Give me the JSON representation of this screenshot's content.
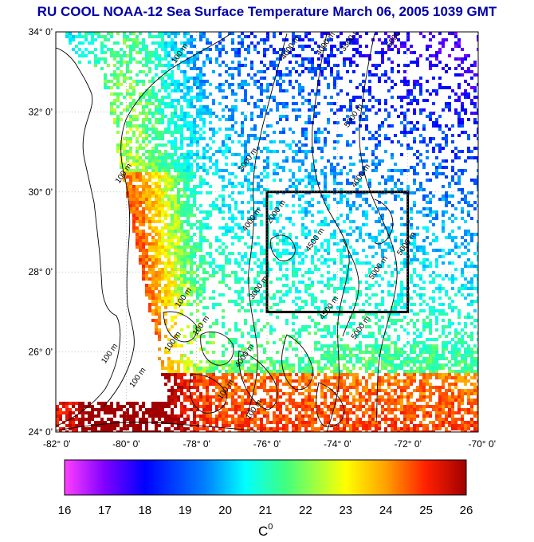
{
  "title": "RU COOL  NOAA-12 Sea Surface Temperature March 06, 2005 1039 GMT",
  "map": {
    "lon_range": [
      -82,
      -70
    ],
    "lat_range": [
      24,
      34
    ],
    "lat_ticks": [
      {
        "value": 34,
        "label": "34° 0'"
      },
      {
        "value": 32,
        "label": "32° 0'"
      },
      {
        "value": 30,
        "label": "30° 0'"
      },
      {
        "value": 28,
        "label": "28° 0'"
      },
      {
        "value": 26,
        "label": "26° 0'"
      },
      {
        "value": 24,
        "label": "24° 0'"
      }
    ],
    "lon_ticks": [
      {
        "value": -82,
        "label": "-82° 0'"
      },
      {
        "value": -80,
        "label": "-80° 0'"
      },
      {
        "value": -78,
        "label": "-78° 0'"
      },
      {
        "value": -76,
        "label": "-76° 0'"
      },
      {
        "value": -74,
        "label": "-74° 0'"
      },
      {
        "value": -72,
        "label": "-72° 0'"
      },
      {
        "value": -70,
        "label": "-70° 0'"
      }
    ],
    "box": {
      "lon_min": -76,
      "lon_max": -72,
      "lat_min": 27,
      "lat_max": 30
    },
    "contour_labels": [
      {
        "text": "100 m",
        "lon": -78.6,
        "lat": 33.2
      },
      {
        "text": "4000 m",
        "lon": -75.5,
        "lat": 33.3
      },
      {
        "text": "4000 m",
        "lon": -74.5,
        "lat": 33.4
      },
      {
        "text": "3500 m",
        "lon": -73.8,
        "lat": 33.5
      },
      {
        "text": "5000 m",
        "lon": -72.5,
        "lat": 33.6
      },
      {
        "text": "100 m",
        "lon": -80.2,
        "lat": 30.2
      },
      {
        "text": "3000 m",
        "lon": -76.7,
        "lat": 30.5
      },
      {
        "text": "5000 m",
        "lon": -73.7,
        "lat": 31.6
      },
      {
        "text": "4000 m",
        "lon": -73.5,
        "lat": 30.1
      },
      {
        "text": "4000 m",
        "lon": -76.6,
        "lat": 29.0
      },
      {
        "text": "2000 m",
        "lon": -75.9,
        "lat": 29.2
      },
      {
        "text": "4500 m",
        "lon": -74.8,
        "lat": 28.5
      },
      {
        "text": "5000 m",
        "lon": -73.0,
        "lat": 27.8
      },
      {
        "text": "5000 m",
        "lon": -72.2,
        "lat": 28.4
      },
      {
        "text": "3000 m",
        "lon": -76.4,
        "lat": 27.3
      },
      {
        "text": "100 m",
        "lon": -78.5,
        "lat": 27.1
      },
      {
        "text": "100 m",
        "lon": -78.0,
        "lat": 26.4
      },
      {
        "text": "100 m",
        "lon": -78.8,
        "lat": 26.0
      },
      {
        "text": "4000 m",
        "lon": -76.8,
        "lat": 25.6
      },
      {
        "text": "4500 m",
        "lon": -74.4,
        "lat": 26.8
      },
      {
        "text": "5000 m",
        "lon": -73.5,
        "lat": 26.3
      },
      {
        "text": "100 m",
        "lon": -80.6,
        "lat": 25.7
      },
      {
        "text": "100 m",
        "lon": -79.8,
        "lat": 25.1
      },
      {
        "text": "100 m",
        "lon": -77.3,
        "lat": 24.8
      },
      {
        "text": "100 m",
        "lon": -76.5,
        "lat": 24.3
      }
    ]
  },
  "colorbar": {
    "min": 16,
    "max": 26,
    "ticks": [
      "16",
      "17",
      "18",
      "19",
      "20",
      "21",
      "22",
      "23",
      "24",
      "25",
      "26"
    ],
    "stops": [
      "#ff40ff",
      "#8000ff",
      "#0000ff",
      "#0080ff",
      "#00ffff",
      "#40ff80",
      "#ffff00",
      "#ffa000",
      "#ff2000",
      "#a00000"
    ],
    "unit": "C",
    "unit_sup": "0"
  }
}
